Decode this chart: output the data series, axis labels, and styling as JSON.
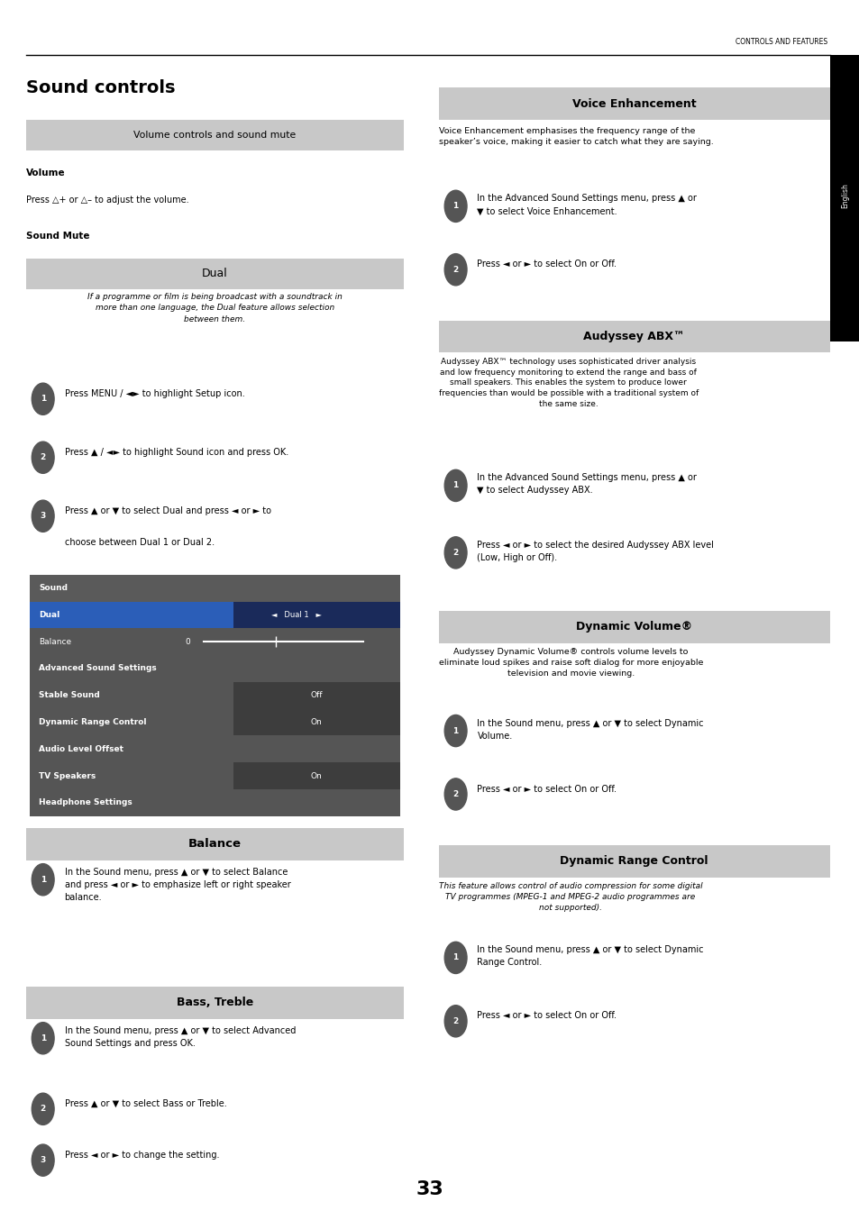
{
  "page_width": 9.54,
  "page_height": 13.54,
  "bg_color": "#ffffff",
  "header_text": "CONTROLS AND FEATURES",
  "page_number": "33",
  "main_title": "Sound controls",
  "sections": {
    "vol_header": "Volume controls and sound mute",
    "vol_header_bg": "#c8c8c8",
    "dual_header": "Dual",
    "dual_header_bg": "#c8c8c8",
    "balance_header": "Balance",
    "balance_header_bg": "#c8c8c8",
    "bass_header": "Bass, Treble",
    "bass_header_bg": "#c8c8c8",
    "voice_header": "Voice Enhancement",
    "voice_header_bg": "#c8c8c8",
    "audyssey_header": "Audyssey ABX™",
    "audyssey_header_bg": "#c8c8c8",
    "dynvol_header": "Dynamic Volume®",
    "dynvol_header_bg": "#c8c8c8",
    "dynrange_header": "Dynamic Range Control",
    "dynrange_header_bg": "#c8c8c8"
  },
  "menu_bg": "#6b6b6b",
  "menu_header_bg": "#5a5a5a",
  "menu_row_highlight_bg": "#2b5eb8",
  "menu_row_dark_bg": "#3d3d3d",
  "menu_row_medium_bg": "#555555",
  "sidebar_color": "#1a1a1a",
  "step_circle_color": "#555555",
  "step_circle_text_color": "#ffffff"
}
